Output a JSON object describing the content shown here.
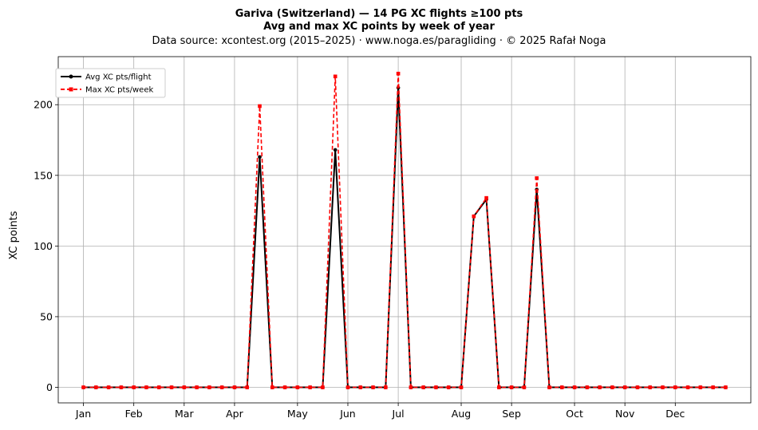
{
  "chart_data": {
    "type": "line",
    "title": "Gariva (Switzerland)  —  14 PG XC flights ≥100 pts",
    "subtitle": "Avg and max XC points by week of year",
    "source_line": "Data source: xcontest.org (2015–2025)  ·  www.noga.es/paragliding  ·  © 2025 Rafał Noga",
    "xlabel": "",
    "ylabel": "XC points",
    "xlim": [
      -1,
      54
    ],
    "ylim": [
      -11,
      234
    ],
    "grid": true,
    "legend_position": "upper left",
    "x_tick_positions": [
      1,
      5,
      9,
      13,
      18,
      22,
      26,
      31,
      35,
      40,
      44,
      48
    ],
    "x_tick_labels": [
      "Jan",
      "Feb",
      "Mar",
      "Apr",
      "May",
      "Jun",
      "Jul",
      "Aug",
      "Sep",
      "Oct",
      "Nov",
      "Dec"
    ],
    "y_ticks": [
      0,
      50,
      100,
      150,
      200
    ],
    "x": [
      1,
      2,
      3,
      4,
      5,
      6,
      7,
      8,
      9,
      10,
      11,
      12,
      13,
      14,
      15,
      16,
      17,
      18,
      19,
      20,
      21,
      22,
      23,
      24,
      25,
      26,
      27,
      28,
      29,
      30,
      31,
      32,
      33,
      34,
      35,
      36,
      37,
      38,
      39,
      40,
      41,
      42,
      43,
      44,
      45,
      46,
      47,
      48,
      49,
      50,
      51,
      52
    ],
    "series": [
      {
        "name": "Avg XC pts/flight",
        "color": "#000000",
        "style": "solid",
        "marker": "circle",
        "values": [
          0,
          0,
          0,
          0,
          0,
          0,
          0,
          0,
          0,
          0,
          0,
          0,
          0,
          0,
          163,
          0,
          0,
          0,
          0,
          0,
          168,
          0,
          0,
          0,
          0,
          212,
          0,
          0,
          0,
          0,
          0,
          121,
          133,
          0,
          0,
          0,
          140,
          0,
          0,
          0,
          0,
          0,
          0,
          0,
          0,
          0,
          0,
          0,
          0,
          0,
          0,
          0
        ]
      },
      {
        "name": "Max XC pts/week",
        "color": "#ff0000",
        "style": "dashed",
        "marker": "square",
        "values": [
          0,
          0,
          0,
          0,
          0,
          0,
          0,
          0,
          0,
          0,
          0,
          0,
          0,
          0,
          199,
          0,
          0,
          0,
          0,
          0,
          220,
          0,
          0,
          0,
          0,
          222,
          0,
          0,
          0,
          0,
          0,
          121,
          134,
          0,
          0,
          0,
          148,
          0,
          0,
          0,
          0,
          0,
          0,
          0,
          0,
          0,
          0,
          0,
          0,
          0,
          0,
          0
        ]
      }
    ]
  }
}
